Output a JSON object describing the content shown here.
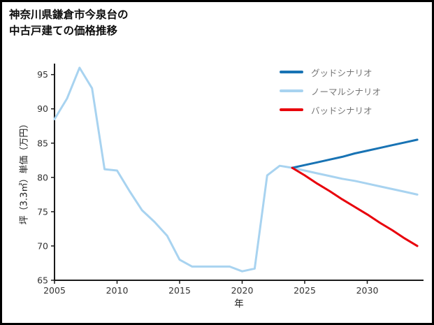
{
  "header": {
    "title_line1": "神奈川県鎌倉市今泉台の",
    "title_line2": "中古戸建ての価格推移"
  },
  "chart_data": {
    "type": "line",
    "title": "神奈川県鎌倉市今泉台の中古戸建ての価格推移",
    "xlabel": "年",
    "ylabel": "坪（3.3㎡）単価（万円）",
    "xlim": [
      2005,
      2034.5
    ],
    "ylim": [
      65,
      96.6
    ],
    "x_ticks": [
      2005,
      2010,
      2015,
      2020,
      2025,
      2030
    ],
    "y_ticks": [
      65,
      70,
      75,
      80,
      85,
      90,
      95
    ],
    "grid": false,
    "legend_position": "upper right",
    "series": [
      {
        "name": "グッドシナリオ",
        "color": "#1873b4",
        "line_width": 3,
        "x": [
          2024,
          2025,
          2026,
          2027,
          2028,
          2029,
          2030,
          2031,
          2032,
          2033,
          2034
        ],
        "values": [
          81.4,
          81.8,
          82.2,
          82.6,
          83.0,
          83.5,
          83.9,
          84.3,
          84.7,
          85.1,
          85.5
        ]
      },
      {
        "name": "ノーマルシナリオ",
        "color": "#a8d3f0",
        "line_width": 3,
        "x": [
          2005,
          2006,
          2007,
          2008,
          2009,
          2010,
          2011,
          2012,
          2013,
          2014,
          2015,
          2016,
          2017,
          2018,
          2019,
          2020,
          2021,
          2022,
          2023,
          2024,
          2025,
          2026,
          2027,
          2028,
          2029,
          2030,
          2031,
          2032,
          2033,
          2034
        ],
        "values": [
          88.5,
          91.5,
          96.0,
          93.0,
          81.2,
          81.0,
          78.0,
          75.2,
          73.5,
          71.5,
          68.0,
          67.0,
          67.0,
          67.0,
          67.0,
          66.3,
          66.7,
          80.3,
          81.7,
          81.4,
          81.0,
          80.6,
          80.2,
          79.8,
          79.5,
          79.1,
          78.7,
          78.3,
          77.9,
          77.5
        ]
      },
      {
        "name": "バッドシナリオ",
        "color": "#e8000b",
        "line_width": 3,
        "x": [
          2024,
          2025,
          2026,
          2027,
          2028,
          2029,
          2030,
          2031,
          2032,
          2033,
          2034
        ],
        "values": [
          81.4,
          80.3,
          79.1,
          78.0,
          76.8,
          75.7,
          74.6,
          73.4,
          72.3,
          71.1,
          70.0
        ]
      }
    ]
  }
}
